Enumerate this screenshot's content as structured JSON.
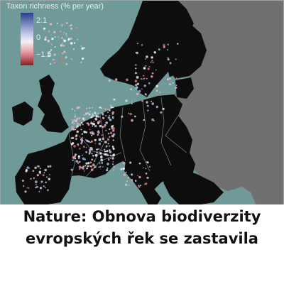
{
  "legend": {
    "title": "Taxon richness (% per year)",
    "ticks": [
      "2.1",
      "0",
      "−1.5"
    ],
    "colors": {
      "high": "#2a3d8f",
      "mid": "#f2f2f2",
      "low": "#8e1b22"
    }
  },
  "map": {
    "sea_color": "#6f9a98",
    "land_color": "#0d0d0d",
    "unsampled_land_color": "#707070",
    "border_color": "#6c7a7c"
  },
  "headline": {
    "line1": "Nature: Obnova biodiverzity",
    "line2": "evropských řek se zastavila"
  }
}
